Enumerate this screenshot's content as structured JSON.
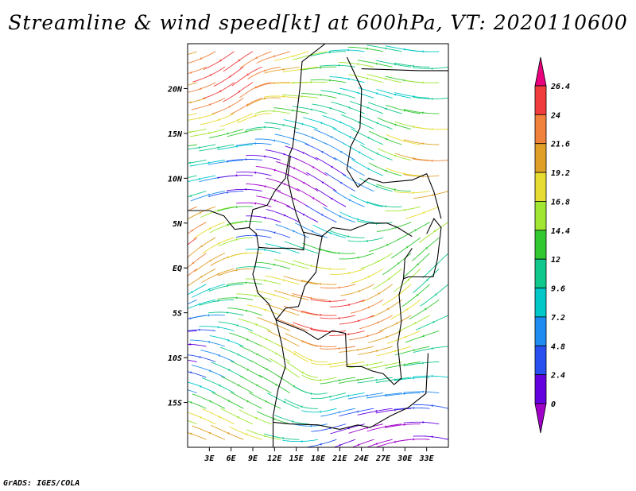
{
  "title": "Streamline & wind speed[kt] at 600hPa, VT: 2020110600",
  "footer": "GrADS: IGES/COLA",
  "map": {
    "lon_range": [
      0,
      36
    ],
    "lat_range": [
      -20,
      25
    ],
    "lat_ticks": [
      "20N",
      "15N",
      "10N",
      "5N",
      "EQ",
      "5S",
      "10S",
      "15S"
    ],
    "lat_values": [
      20,
      15,
      10,
      5,
      0,
      -5,
      -10,
      -15
    ],
    "lon_ticks": [
      "3E",
      "6E",
      "9E",
      "12E",
      "15E",
      "18E",
      "21E",
      "24E",
      "27E",
      "30E",
      "33E"
    ],
    "lon_values": [
      3,
      6,
      9,
      12,
      15,
      18,
      21,
      24,
      27,
      30,
      33
    ]
  },
  "colorbar": {
    "labels": [
      "26.4",
      "24",
      "21.6",
      "19.2",
      "16.8",
      "14.4",
      "12",
      "9.6",
      "7.2",
      "4.8",
      "2.4",
      "0"
    ],
    "colors": [
      "#e8007c",
      "#f03c3c",
      "#f0823c",
      "#e0a028",
      "#e6dc32",
      "#a0e632",
      "#32c832",
      "#10c88c",
      "#00c8c8",
      "#1e8cf0",
      "#2850f0",
      "#6400e0",
      "#a000c8"
    ]
  }
}
